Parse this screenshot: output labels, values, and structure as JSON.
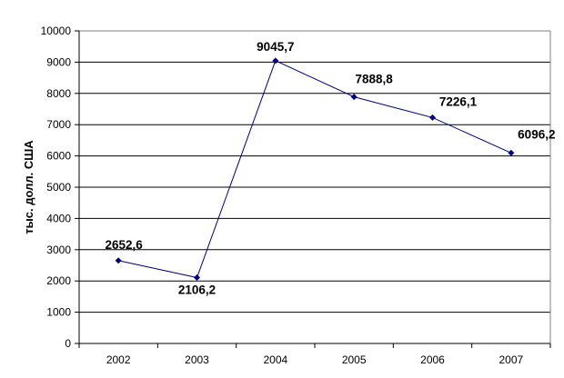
{
  "chart_data": {
    "type": "line",
    "title": "",
    "xlabel": "",
    "ylabel": "тыс. долл. США",
    "categories": [
      "2002",
      "2003",
      "2004",
      "2005",
      "2006",
      "2007"
    ],
    "series": [
      {
        "values": [
          2652.6,
          2106.2,
          9045.7,
          7888.8,
          7226.1,
          6096.2
        ],
        "data_labels": [
          "2652,6",
          "2106,2",
          "9045,7",
          "7888,8",
          "7226,1",
          "6096,2"
        ]
      }
    ],
    "ylim": [
      0,
      10000
    ],
    "yticks": [
      "0",
      "1000",
      "2000",
      "3000",
      "4000",
      "5000",
      "6000",
      "7000",
      "8000",
      "9000",
      "10000"
    ],
    "grid": true,
    "legend": "none",
    "colors": {
      "line": "#000080",
      "marker": "#000080",
      "grid": "#000000"
    }
  }
}
